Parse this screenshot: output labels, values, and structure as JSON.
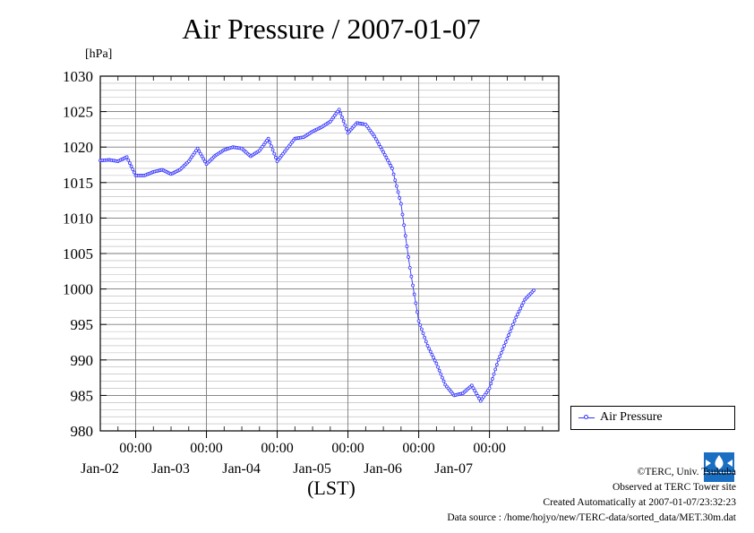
{
  "chart_data": {
    "type": "line",
    "title": "Air Pressure / 2007-01-07",
    "ylabel": "[hPa]",
    "xlabel": "(LST)",
    "ylim": [
      980,
      1030
    ],
    "yticks": [
      980,
      985,
      990,
      995,
      1000,
      1005,
      1010,
      1015,
      1020,
      1025,
      1030
    ],
    "xlim": [
      "2007-01-01T12:00",
      "2007-01-07T23:30"
    ],
    "x_tick_labels": [
      {
        "time": "2007-01-02T00:00",
        "label": "00:00",
        "date": "Jan-02"
      },
      {
        "time": "2007-01-03T00:00",
        "label": "00:00",
        "date": "Jan-03"
      },
      {
        "time": "2007-01-04T00:00",
        "label": "00:00",
        "date": "Jan-04"
      },
      {
        "time": "2007-01-05T00:00",
        "label": "00:00",
        "date": "Jan-05"
      },
      {
        "time": "2007-01-06T00:00",
        "label": "00:00",
        "date": "Jan-06"
      },
      {
        "time": "2007-01-07T00:00",
        "label": "00:00",
        "date": "Jan-07"
      }
    ],
    "grid": true,
    "legend_position": "right",
    "series": [
      {
        "name": "Air Pressure",
        "color": "#3333ff",
        "marker": "open-circle",
        "points": [
          [
            "2007-01-01T12:00",
            1018.1
          ],
          [
            "2007-01-01T15:00",
            1018.2
          ],
          [
            "2007-01-01T18:00",
            1018.0
          ],
          [
            "2007-01-01T21:00",
            1018.6
          ],
          [
            "2007-01-02T00:00",
            1016.0
          ],
          [
            "2007-01-02T03:00",
            1016.0
          ],
          [
            "2007-01-02T06:00",
            1016.5
          ],
          [
            "2007-01-02T09:00",
            1016.8
          ],
          [
            "2007-01-02T12:00",
            1016.2
          ],
          [
            "2007-01-02T15:00",
            1016.8
          ],
          [
            "2007-01-02T18:00",
            1018.0
          ],
          [
            "2007-01-02T21:00",
            1019.8
          ],
          [
            "2007-01-03T00:00",
            1017.6
          ],
          [
            "2007-01-03T03:00",
            1018.8
          ],
          [
            "2007-01-03T06:00",
            1019.6
          ],
          [
            "2007-01-03T09:00",
            1020.0
          ],
          [
            "2007-01-03T12:00",
            1019.8
          ],
          [
            "2007-01-03T15:00",
            1018.7
          ],
          [
            "2007-01-03T18:00",
            1019.5
          ],
          [
            "2007-01-03T21:00",
            1021.2
          ],
          [
            "2007-01-04T00:00",
            1018.0
          ],
          [
            "2007-01-04T03:00",
            1019.6
          ],
          [
            "2007-01-04T06:00",
            1021.2
          ],
          [
            "2007-01-04T09:00",
            1021.4
          ],
          [
            "2007-01-04T12:00",
            1022.2
          ],
          [
            "2007-01-04T15:00",
            1022.8
          ],
          [
            "2007-01-04T18:00",
            1023.6
          ],
          [
            "2007-01-04T21:00",
            1025.3
          ],
          [
            "2007-01-05T00:00",
            1022.0
          ],
          [
            "2007-01-05T03:00",
            1023.4
          ],
          [
            "2007-01-05T06:00",
            1023.2
          ],
          [
            "2007-01-05T09:00",
            1021.5
          ],
          [
            "2007-01-05T12:00",
            1019.3
          ],
          [
            "2007-01-05T15:00",
            1017.0
          ],
          [
            "2007-01-05T18:00",
            1012.0
          ],
          [
            "2007-01-05T21:00",
            1003.0
          ],
          [
            "2007-01-06T00:00",
            995.5
          ],
          [
            "2007-01-06T03:00",
            992.0
          ],
          [
            "2007-01-06T06:00",
            989.5
          ],
          [
            "2007-01-06T09:00",
            986.5
          ],
          [
            "2007-01-06T12:00",
            985.0
          ],
          [
            "2007-01-06T15:00",
            985.3
          ],
          [
            "2007-01-06T18:00",
            986.4
          ],
          [
            "2007-01-06T21:00",
            984.2
          ],
          [
            "2007-01-07T00:00",
            986.0
          ],
          [
            "2007-01-07T03:00",
            990.0
          ],
          [
            "2007-01-07T06:00",
            993.0
          ],
          [
            "2007-01-07T09:00",
            996.0
          ],
          [
            "2007-01-07T12:00",
            998.5
          ],
          [
            "2007-01-07T15:00",
            999.8
          ]
        ]
      }
    ]
  },
  "legend": {
    "label": "Air Pressure"
  },
  "footer": {
    "copyright": "©TERC, Univ. Tsukuba",
    "observed": "Observed at TERC Tower site",
    "created": "Created Automatically at 2007-01-07/23:32:23",
    "source": "Data source : /home/hojyo/new/TERC-data/sorted_data/MET.30m.dat"
  },
  "logo": {
    "text": "TERC",
    "color": "#1a6fc2"
  }
}
